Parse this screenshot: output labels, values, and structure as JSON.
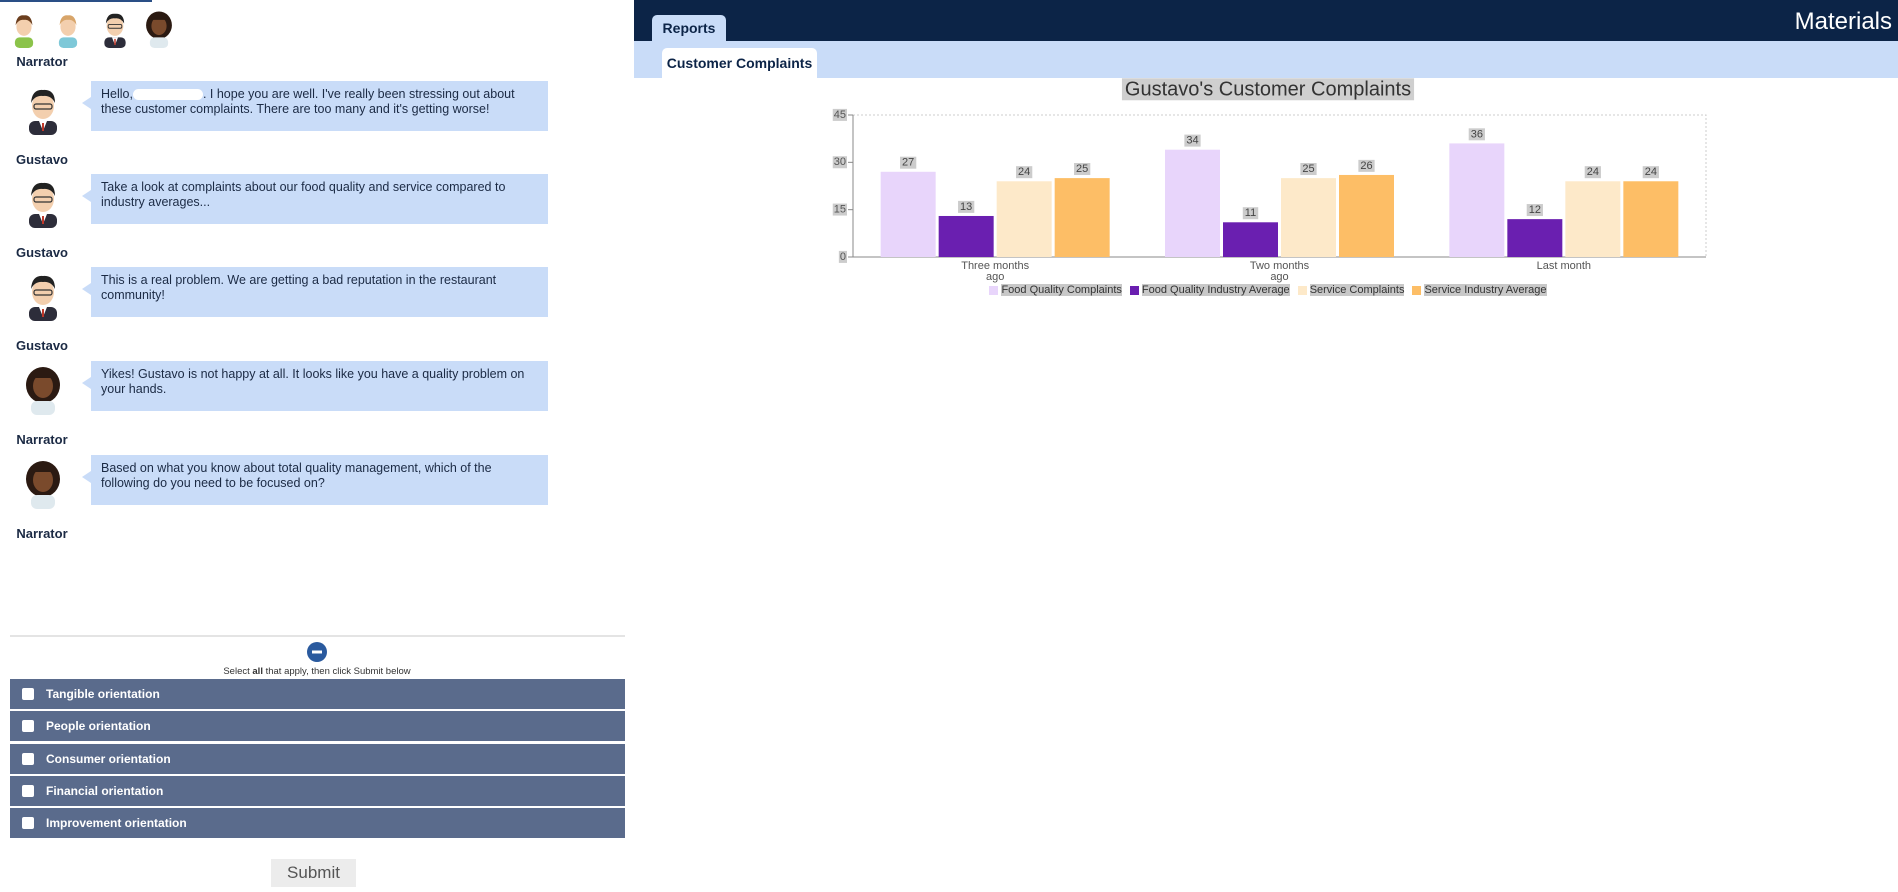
{
  "narrator_label": "Narrator",
  "messages": [
    {
      "speaker": "Gustavo",
      "greeting": "Hello,",
      "text": ". I hope you are well. I've really been stressing out about these customer complaints. There are too many and it's getting worse!"
    },
    {
      "speaker": "Gustavo",
      "text": "Take a look at complaints about our food quality and service compared to industry averages..."
    },
    {
      "speaker": "Gustavo",
      "text": "This is a real problem. We are getting a bad reputation in the restaurant community!"
    },
    {
      "speaker": "Narrator",
      "text": "Yikes! Gustavo is not happy at all. It looks like you have a quality problem on your hands."
    },
    {
      "speaker": "Narrator",
      "text": "Based on what you know about total quality management, which of the following do you need to be focused on?"
    }
  ],
  "instruction": [
    "Select ",
    "all",
    " that apply, then click Submit below"
  ],
  "options": [
    "Tangible orientation",
    "People orientation",
    "Consumer orientation",
    "Financial orientation",
    "Improvement orientation"
  ],
  "submit": "Submit",
  "tabs": {
    "main": "Reports",
    "right": "Materials",
    "sub": "Customer Complaints"
  },
  "chart_data": {
    "type": "bar",
    "title": "Gustavo's Customer Complaints",
    "categories": [
      "Three months ago",
      "Two months ago",
      "Last month"
    ],
    "series": [
      {
        "name": "Food Quality Complaints",
        "color": "#e8d5fb",
        "values": [
          27,
          34,
          36
        ]
      },
      {
        "name": "Food Quality Industry Average",
        "color": "#6a1fb0",
        "values": [
          13,
          11,
          12
        ]
      },
      {
        "name": "Service Complaints",
        "color": "#fde9c9",
        "values": [
          24,
          25,
          24
        ]
      },
      {
        "name": "Service Industry Average",
        "color": "#fdbe66",
        "values": [
          25,
          26,
          24
        ]
      }
    ],
    "ylim": [
      0,
      45
    ],
    "yticks": [
      0,
      15,
      30,
      45
    ],
    "grid": false
  }
}
